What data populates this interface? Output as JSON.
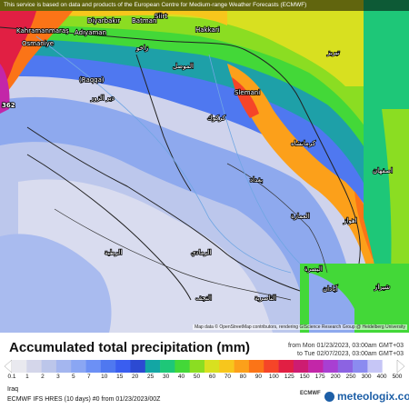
{
  "header_note": "This service is based on data and products of the European Centre for Medium-range Weather Forecasts (ECMWF)",
  "attribution": "Map data © OpenStreetMap contributors, rendering GIScience Research Group @ Heidelberg University",
  "map_labels": {
    "diyarbakir": "Diyarbakır",
    "batman": "Batman",
    "siirt": "Siirt",
    "hakkari": "Hakkari",
    "kahramanmaras": "Kahramanmaraş",
    "adiyaman": "Adıyaman",
    "osmaniye": "Osmaniye",
    "raqqa": "(Raqqa)",
    "sulaymaniyah": "Slemani",
    "dir_ez_zor": "دير الزور",
    "mosul": "الموصل",
    "kirkuk": "كركوك",
    "baghdad": "بغداد",
    "basra": "البصرة",
    "zakho": "زاخو",
    "ramadi": "الرمادي",
    "najaf": "النجف",
    "amara": "العمارة",
    "nasiriyah": "الناصرية",
    "rutba": "الرطبة",
    "ahvaz": "اهواز",
    "shiraz": "شيراز",
    "isfahan": "اصفهان",
    "kermanshah": "كرمانشاه",
    "tabriz": "تبريز",
    "abadan": "آبادان",
    "value_362": "362"
  },
  "legend": {
    "title": "Accumulated total precipitation (mm)",
    "range_from": "from Mon 01/23/2023, 03:00am GMT+03",
    "range_to": "to Tue 02/07/2023, 03:00am GMT+03",
    "region": "Iraq",
    "model": "ECMWF IFS HRES (10 days) #0 from 01/23/2023/00Z",
    "ecmwf_logo": "ECMWF",
    "brand": "meteologix.com",
    "ticks": [
      "0.1",
      "1",
      "2",
      "3",
      "5",
      "7",
      "10",
      "15",
      "20",
      "25",
      "30",
      "40",
      "50",
      "60",
      "70",
      "80",
      "90",
      "100",
      "125",
      "150",
      "175",
      "200",
      "250",
      "300",
      "400",
      "500"
    ],
    "colors": [
      "#e9e9ef",
      "#d4d6ea",
      "#bcc6ea",
      "#a4b6ef",
      "#8aa6f3",
      "#6c90f5",
      "#4f78f0",
      "#3a5ef0",
      "#2c4ad2",
      "#13a6a4",
      "#1ec778",
      "#43d838",
      "#8bdd22",
      "#d8e020",
      "#f7c61c",
      "#fca01a",
      "#fb7417",
      "#f54528",
      "#e11f43",
      "#cd1c71",
      "#c326a8",
      "#a83fd2",
      "#8c63e2",
      "#8b8bf0",
      "#c6c6f6",
      "#ffffff"
    ]
  }
}
